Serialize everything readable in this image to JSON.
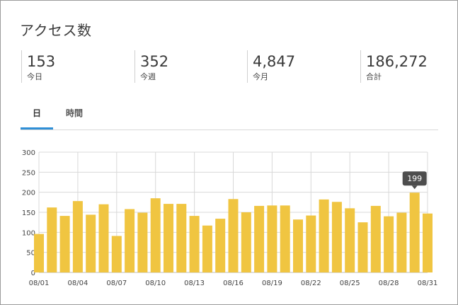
{
  "title": "アクセス数",
  "stats": [
    {
      "value": "153",
      "label": "今日"
    },
    {
      "value": "352",
      "label": "今週"
    },
    {
      "value": "4,847",
      "label": "今月"
    },
    {
      "value": "186,272",
      "label": "合計"
    }
  ],
  "tabs": [
    {
      "label": "日",
      "active": true
    },
    {
      "label": "時間",
      "active": false
    }
  ],
  "colors": {
    "bar": "#f0c541",
    "grid": "#d8d8d8",
    "tab_accent": "#2f8fd6"
  },
  "tooltip": {
    "text": "199"
  },
  "chart_data": {
    "type": "bar",
    "categories": [
      "08/01",
      "08/02",
      "08/03",
      "08/04",
      "08/05",
      "08/06",
      "08/07",
      "08/08",
      "08/09",
      "08/10",
      "08/11",
      "08/12",
      "08/13",
      "08/14",
      "08/15",
      "08/16",
      "08/17",
      "08/18",
      "08/19",
      "08/20",
      "08/21",
      "08/22",
      "08/23",
      "08/24",
      "08/25",
      "08/26",
      "08/27",
      "08/28",
      "08/29",
      "08/30",
      "08/31"
    ],
    "values": [
      96,
      162,
      141,
      178,
      144,
      170,
      91,
      158,
      149,
      185,
      171,
      171,
      141,
      117,
      134,
      183,
      150,
      166,
      167,
      167,
      132,
      142,
      182,
      176,
      160,
      125,
      166,
      140,
      149,
      199,
      147
    ],
    "x_tick_labels": [
      "08/01",
      "08/04",
      "08/07",
      "08/10",
      "08/13",
      "08/16",
      "08/19",
      "08/22",
      "08/25",
      "08/28",
      "08/31"
    ],
    "y_ticks": [
      0,
      50,
      100,
      150,
      200,
      250,
      300
    ],
    "ylim": [
      0,
      300
    ],
    "grid": true,
    "highlighted": {
      "category": "08/30",
      "value": 199
    }
  }
}
